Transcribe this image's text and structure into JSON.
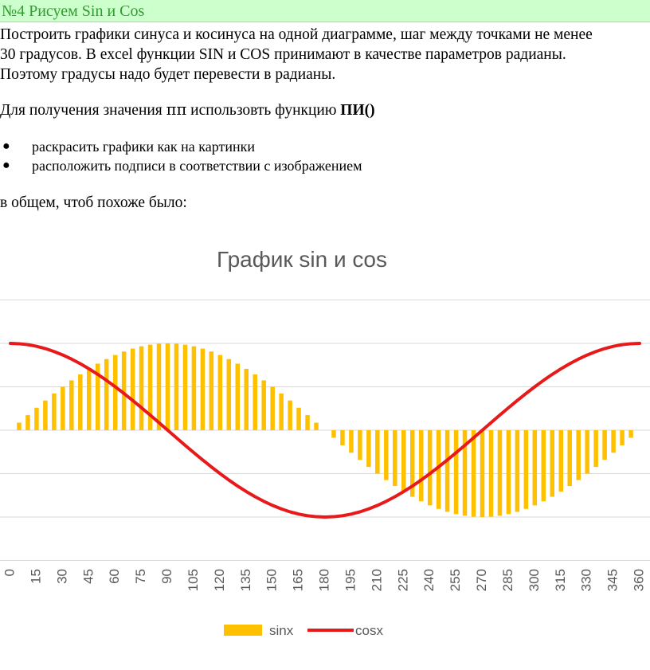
{
  "document": {
    "heading": "№4 Рисуем Sin и Cos",
    "paragraph1": [
      "Построить графики синуса и косинуса на одной диаграмме, шаг между точками не менее",
      "30 градусов. В excel функции SIN и COS принимают в качестве параметров радианы.",
      "Поэтому градусы надо будет перевести в радианы."
    ],
    "paragraph2_prefix": "Для получения значения ",
    "paragraph2_pi": "ππ",
    "paragraph2_mid": " использовть функцию ",
    "paragraph2_func": "ПИ()",
    "bullets": [
      "раскрасить графики как на картинки",
      "расположить подписи в соответствии с изображением"
    ],
    "paragraph3": "в общем, чтоб похоже было:"
  },
  "colors": {
    "sin_bar": "#ffc000",
    "cos_line": "#e8191a",
    "gridline": "#d9d9d9",
    "title": "#595959",
    "tick": "#595959",
    "heading_bg": "#ccffcc",
    "heading_text": "#2e9e2e"
  },
  "chart_data": {
    "type": "bar+line",
    "title": "График sin и cos",
    "xlabel": "",
    "ylabel": "",
    "x": [
      0,
      5,
      10,
      15,
      20,
      25,
      30,
      35,
      40,
      45,
      50,
      55,
      60,
      65,
      70,
      75,
      80,
      85,
      90,
      95,
      100,
      105,
      110,
      115,
      120,
      125,
      130,
      135,
      140,
      145,
      150,
      155,
      160,
      165,
      170,
      175,
      180,
      185,
      190,
      195,
      200,
      205,
      210,
      215,
      220,
      225,
      230,
      235,
      240,
      245,
      250,
      255,
      260,
      265,
      270,
      275,
      280,
      285,
      290,
      295,
      300,
      305,
      310,
      315,
      320,
      325,
      330,
      335,
      340,
      345,
      350,
      355,
      360
    ],
    "x_tick_labels": [
      "0",
      "15",
      "30",
      "45",
      "60",
      "75",
      "90",
      "105",
      "120",
      "135",
      "150",
      "165",
      "180",
      "195",
      "210",
      "225",
      "240",
      "255",
      "270",
      "285",
      "300",
      "315",
      "330",
      "345",
      "360"
    ],
    "ylim": [
      -1.5,
      1.5
    ],
    "grid": true,
    "legend_position": "bottom",
    "series": [
      {
        "name": "sinx",
        "kind": "bar",
        "values": [
          0,
          0.087,
          0.174,
          0.259,
          0.342,
          0.423,
          0.5,
          0.574,
          0.643,
          0.707,
          0.766,
          0.819,
          0.866,
          0.906,
          0.94,
          0.966,
          0.985,
          0.996,
          1,
          0.996,
          0.985,
          0.966,
          0.94,
          0.906,
          0.866,
          0.819,
          0.766,
          0.707,
          0.643,
          0.574,
          0.5,
          0.423,
          0.342,
          0.259,
          0.174,
          0.087,
          0,
          -0.087,
          -0.174,
          -0.259,
          -0.342,
          -0.423,
          -0.5,
          -0.574,
          -0.643,
          -0.707,
          -0.766,
          -0.819,
          -0.866,
          -0.906,
          -0.94,
          -0.966,
          -0.985,
          -0.996,
          -1,
          -0.996,
          -0.985,
          -0.966,
          -0.94,
          -0.906,
          -0.866,
          -0.819,
          -0.766,
          -0.707,
          -0.643,
          -0.574,
          -0.5,
          -0.423,
          -0.342,
          -0.259,
          -0.174,
          -0.087,
          0
        ]
      },
      {
        "name": "cosx",
        "kind": "line",
        "values": [
          1,
          0.996,
          0.985,
          0.966,
          0.94,
          0.906,
          0.866,
          0.819,
          0.766,
          0.707,
          0.643,
          0.574,
          0.5,
          0.423,
          0.342,
          0.259,
          0.174,
          0.087,
          0,
          -0.087,
          -0.174,
          -0.259,
          -0.342,
          -0.423,
          -0.5,
          -0.574,
          -0.643,
          -0.707,
          -0.766,
          -0.819,
          -0.866,
          -0.906,
          -0.94,
          -0.966,
          -0.985,
          -0.996,
          -1,
          -0.996,
          -0.985,
          -0.966,
          -0.94,
          -0.906,
          -0.866,
          -0.819,
          -0.766,
          -0.707,
          -0.643,
          -0.574,
          -0.5,
          -0.423,
          -0.342,
          -0.259,
          -0.174,
          -0.087,
          0,
          0.087,
          0.174,
          0.259,
          0.342,
          0.423,
          0.5,
          0.574,
          0.643,
          0.707,
          0.766,
          0.819,
          0.866,
          0.906,
          0.94,
          0.966,
          0.985,
          0.996,
          1
        ]
      }
    ]
  }
}
